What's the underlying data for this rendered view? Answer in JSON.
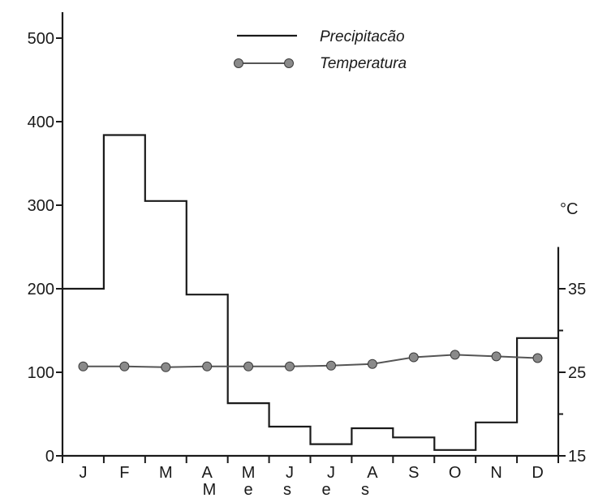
{
  "chart_data": {
    "type": "line",
    "categories": [
      "J",
      "F",
      "M",
      "A",
      "M",
      "J",
      "J",
      "A",
      "S",
      "O",
      "N",
      "D"
    ],
    "xlabel": "M e s e s",
    "series": [
      {
        "name": "Precipitacão",
        "axis": "left",
        "style": "step",
        "values": [
          200,
          384,
          305,
          193,
          63,
          35,
          14,
          33,
          22,
          7,
          40,
          141
        ]
      },
      {
        "name": "Temperatura",
        "axis": "right",
        "style": "line-markers",
        "values": [
          25.7,
          25.7,
          25.6,
          25.7,
          25.7,
          25.7,
          25.8,
          26.0,
          26.8,
          27.1,
          26.9,
          26.7
        ]
      }
    ],
    "y_left": {
      "ticks": [
        0,
        100,
        200,
        300,
        400,
        500
      ],
      "ylim": [
        0,
        525
      ]
    },
    "y_right": {
      "ticks": [
        15,
        25,
        35
      ],
      "ylim": [
        15,
        40
      ],
      "unit": "°C"
    },
    "legend": {
      "placement": "top-center",
      "entries": [
        "Precipitacão",
        "Temperatura"
      ]
    },
    "grid": false
  }
}
